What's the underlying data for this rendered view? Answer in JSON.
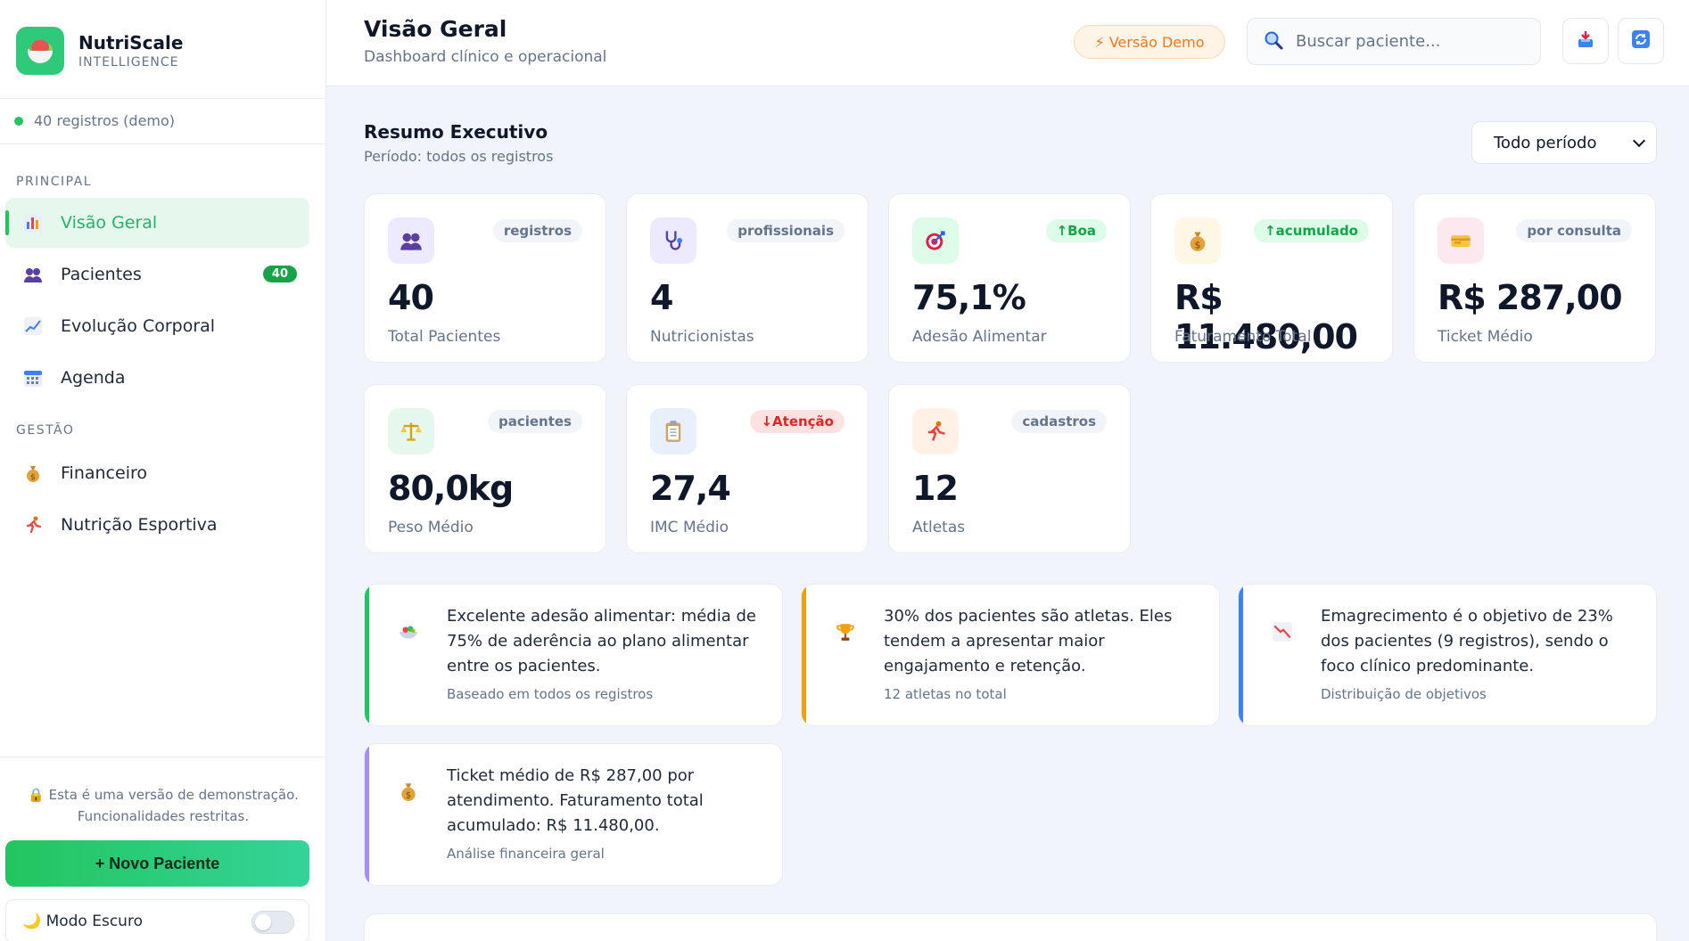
{
  "brand": {
    "name": "NutriScale",
    "subtitle": "INTELLIGENCE"
  },
  "sidebar": {
    "records": "40 registros (demo)",
    "section_principal": "PRINCIPAL",
    "section_gestao": "GESTÃO",
    "items": [
      {
        "label": "Visão Geral",
        "icon": "chart-icon",
        "active": true
      },
      {
        "label": "Pacientes",
        "icon": "users-icon",
        "badge": "40"
      },
      {
        "label": "Evolução Corporal",
        "icon": "trend-icon"
      },
      {
        "label": "Agenda",
        "icon": "calendar-icon"
      },
      {
        "label": "Financeiro",
        "icon": "money-bag-icon"
      },
      {
        "label": "Nutrição Esportiva",
        "icon": "runner-icon"
      }
    ],
    "demo_note_line1": "🔒 Esta é uma versão de demonstração.",
    "demo_note_line2": "Funcionalidades restritas.",
    "new_patient": "+  Novo Paciente",
    "dark_mode": "🌙 Modo Escuro"
  },
  "header": {
    "title": "Visão Geral",
    "subtitle": "Dashboard clínico e operacional",
    "demo_badge": "⚡ Versão Demo",
    "search_placeholder": "Buscar paciente..."
  },
  "summary": {
    "title": "Resumo Executivo",
    "subtitle": "Período: todos os registros",
    "period": "Todo período"
  },
  "kpis": [
    {
      "value": "40",
      "label": "Total Pacientes",
      "tag": "registros",
      "icon": "users-icon",
      "color": "#ede9fe"
    },
    {
      "value": "4",
      "label": "Nutricionistas",
      "tag": "profissionais",
      "icon": "stethoscope-icon",
      "color": "#ede9fe"
    },
    {
      "value": "75,1%",
      "label": "Adesão Alimentar",
      "tag": "↑Boa",
      "icon": "target-icon",
      "color": "#dcfce7"
    },
    {
      "value": "R$ 11.480,00",
      "label": "Faturamento Total",
      "tag": "↑acumulado",
      "icon": "money-bag-icon",
      "color": "#fff7e6"
    },
    {
      "value": "R$ 287,00",
      "label": "Ticket Médio",
      "tag": "por consulta",
      "icon": "ticket-icon",
      "color": "#fde8ef"
    },
    {
      "value": "80,0kg",
      "label": "Peso Médio",
      "tag": "pacientes",
      "icon": "scale-icon",
      "color": "#e6f7ee"
    },
    {
      "value": "27,4",
      "label": "IMC Médio",
      "tag": "↓Atenção",
      "icon": "clipboard-icon",
      "color": "#e8f0fe"
    },
    {
      "value": "12",
      "label": "Atletas",
      "tag": "cadastros",
      "icon": "runner-icon",
      "color": "#fff1e6"
    }
  ],
  "insights": [
    {
      "text": "Excelente adesão alimentar: média de 75% de aderência ao plano alimentar entre os pacientes.",
      "meta": "Baseado em todos os registros",
      "color": "#22c55e",
      "icon": "salad-icon"
    },
    {
      "text": "30% dos pacientes são atletas. Eles tendem a apresentar maior engajamento e retenção.",
      "meta": "12 atletas no total",
      "color": "#f59e0b",
      "icon": "trophy-icon"
    },
    {
      "text": "Emagrecimento é o objetivo de 23% dos pacientes (9 registros), sendo o foco clínico predominante.",
      "meta": "Distribuição de objetivos",
      "color": "#3b82f6",
      "icon": "chart-down-icon"
    },
    {
      "text": "Ticket médio de R$ 287,00 por atendimento. Faturamento total acumulado: R$ 11.480,00.",
      "meta": "Análise financeira geral",
      "color": "#a78bfa",
      "icon": "money-bag-icon"
    }
  ]
}
